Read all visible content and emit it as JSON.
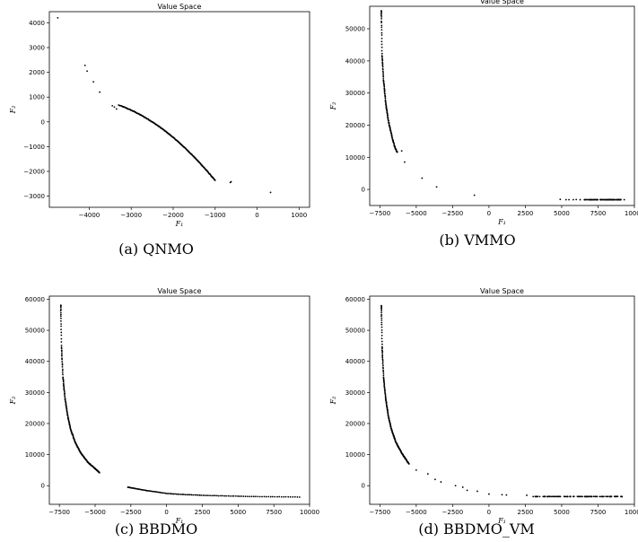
{
  "chart_data": [
    {
      "type": "scatter",
      "title": "Value Space",
      "caption": "(a) QNMO",
      "xlabel": "F₁",
      "ylabel": "F₂",
      "xlim": [
        -4950,
        1250
      ],
      "ylim": [
        -3450,
        4450
      ],
      "xticks": [
        -4000,
        -3000,
        -2000,
        -1000,
        0,
        1000
      ],
      "yticks": [
        -3000,
        -2000,
        -1000,
        0,
        1000,
        2000,
        3000,
        4000
      ],
      "series": [
        {
          "kind": "curve",
          "a": -0.00032,
          "b": -2.7,
          "c": -4750,
          "x_from": -3300,
          "x_to": -1000,
          "n": 230,
          "jitter": 25
        },
        {
          "kind": "points",
          "x": [
            -4750,
            -4100,
            -4050,
            -3900,
            -3750,
            -3450,
            -3400,
            -3350,
            -640,
            -620,
            320
          ],
          "y": [
            4200,
            2280,
            2050,
            1620,
            1200,
            650,
            600,
            520,
            -2450,
            -2420,
            -2850
          ]
        }
      ]
    },
    {
      "type": "scatter",
      "title": "Value Space",
      "caption": "(b) VMMO",
      "xlabel": "F₁",
      "ylabel": "F₂",
      "xlim": [
        -8200,
        10000
      ],
      "ylim": [
        -5000,
        57000
      ],
      "xticks": [
        -7500,
        -5000,
        -2500,
        0,
        2500,
        5000,
        7500,
        10000
      ],
      "yticks": [
        0,
        10000,
        20000,
        30000,
        40000,
        50000
      ],
      "series": [
        {
          "kind": "curve",
          "anchors_x": [
            -7400,
            -7350,
            -7250,
            -7100,
            -6900,
            -6700,
            -6500,
            -6300
          ],
          "anchors_y": [
            55500,
            42000,
            34000,
            27000,
            21000,
            17000,
            13500,
            11500
          ],
          "n": 140,
          "jitter": 300
        },
        {
          "kind": "band",
          "x_from": 6200,
          "x_to": 9100,
          "y": -3200,
          "n": 90,
          "jitter": 40
        },
        {
          "kind": "points",
          "x": [
            -6000,
            -5800,
            -4600,
            -3600,
            -1000,
            4900,
            5300,
            5500,
            5800,
            6000,
            9300
          ],
          "y": [
            12000,
            8500,
            3500,
            800,
            -1800,
            -3100,
            -3200,
            -3200,
            -3200,
            -3150,
            -3200
          ]
        }
      ]
    },
    {
      "type": "scatter",
      "title": "Value Space",
      "caption": "(c) BBDMO",
      "xlabel": "F₁",
      "ylabel": "F₂",
      "xlim": [
        -8200,
        10000
      ],
      "ylim": [
        -6000,
        61000
      ],
      "xticks": [
        -7500,
        -5000,
        -2500,
        0,
        2500,
        5000,
        7500,
        10000
      ],
      "yticks": [
        0,
        10000,
        20000,
        30000,
        40000,
        50000,
        60000
      ],
      "series": [
        {
          "kind": "curve",
          "anchors_x": [
            -7400,
            -7350,
            -7250,
            -7100,
            -6900,
            -6700,
            -6400,
            -6000,
            -5500,
            -5000,
            -4700
          ],
          "anchors_y": [
            58000,
            45000,
            35000,
            28000,
            22000,
            18000,
            14000,
            10500,
            7500,
            5500,
            4200
          ],
          "n": 220,
          "jitter": 250
        },
        {
          "kind": "curve",
          "anchors_x": [
            -2700,
            -1500,
            0,
            1000,
            2500,
            4000,
            5500,
            7000,
            8500,
            9300
          ],
          "anchors_y": [
            -500,
            -1500,
            -2500,
            -2800,
            -3100,
            -3300,
            -3450,
            -3550,
            -3600,
            -3650
          ],
          "n": 120,
          "jitter": 60
        }
      ]
    },
    {
      "type": "scatter",
      "title": "Value Space",
      "caption": "(d) BBDMO_VM",
      "xlabel": "F₁",
      "ylabel": "F₂",
      "xlim": [
        -8200,
        10000
      ],
      "ylim": [
        -6000,
        61000
      ],
      "xticks": [
        -7500,
        -5000,
        -2500,
        0,
        2500,
        5000,
        7500,
        10000
      ],
      "yticks": [
        0,
        10000,
        20000,
        30000,
        40000,
        50000,
        60000
      ],
      "series": [
        {
          "kind": "curve",
          "anchors_x": [
            -7400,
            -7350,
            -7250,
            -7100,
            -6900,
            -6700,
            -6400,
            -6000,
            -5500
          ],
          "anchors_y": [
            58000,
            45000,
            35000,
            28000,
            22000,
            18000,
            14000,
            10500,
            7000
          ],
          "n": 200,
          "jitter": 250
        },
        {
          "kind": "points",
          "x": [
            -5000,
            -4200,
            -3700,
            -3300,
            -2300,
            -1800,
            -1500,
            -800,
            0,
            900,
            1200,
            2600
          ],
          "y": [
            5000,
            3800,
            2000,
            1200,
            0,
            -500,
            -1500,
            -1800,
            -2700,
            -2900,
            -3000,
            -3100
          ]
        },
        {
          "kind": "band",
          "x_from": 3000,
          "x_to": 9200,
          "y": -3500,
          "n": 110,
          "jitter": 60
        }
      ]
    }
  ]
}
